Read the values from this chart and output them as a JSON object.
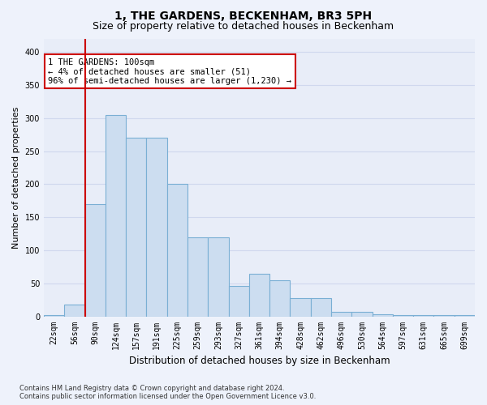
{
  "title": "1, THE GARDENS, BECKENHAM, BR3 5PH",
  "subtitle": "Size of property relative to detached houses in Beckenham",
  "xlabel": "Distribution of detached houses by size in Beckenham",
  "ylabel": "Number of detached properties",
  "bar_labels": [
    "22sqm",
    "56sqm",
    "90sqm",
    "124sqm",
    "157sqm",
    "191sqm",
    "225sqm",
    "259sqm",
    "293sqm",
    "327sqm",
    "361sqm",
    "394sqm",
    "428sqm",
    "462sqm",
    "496sqm",
    "530sqm",
    "564sqm",
    "597sqm",
    "631sqm",
    "665sqm",
    "699sqm"
  ],
  "bar_heights": [
    2,
    18,
    170,
    305,
    270,
    270,
    200,
    120,
    120,
    47,
    65,
    55,
    28,
    28,
    8,
    8,
    4,
    2,
    2,
    2,
    2
  ],
  "bar_color": "#ccddf0",
  "bar_edge_color": "#7aafd4",
  "red_line_index": 2,
  "annotation_text": "1 THE GARDENS: 100sqm\n← 4% of detached houses are smaller (51)\n96% of semi-detached houses are larger (1,230) →",
  "annotation_box_color": "#ffffff",
  "annotation_box_edge": "#cc0000",
  "ylim": [
    0,
    420
  ],
  "yticks": [
    0,
    50,
    100,
    150,
    200,
    250,
    300,
    350,
    400
  ],
  "footnote": "Contains HM Land Registry data © Crown copyright and database right 2024.\nContains public sector information licensed under the Open Government Licence v3.0.",
  "bg_color": "#eef2fb",
  "plot_bg_color": "#e8edf8",
  "grid_color": "#d0d8ee",
  "red_line_color": "#cc0000",
  "title_fontsize": 10,
  "subtitle_fontsize": 9,
  "tick_fontsize": 7,
  "ylabel_fontsize": 8,
  "xlabel_fontsize": 8.5,
  "annot_fontsize": 7.5
}
